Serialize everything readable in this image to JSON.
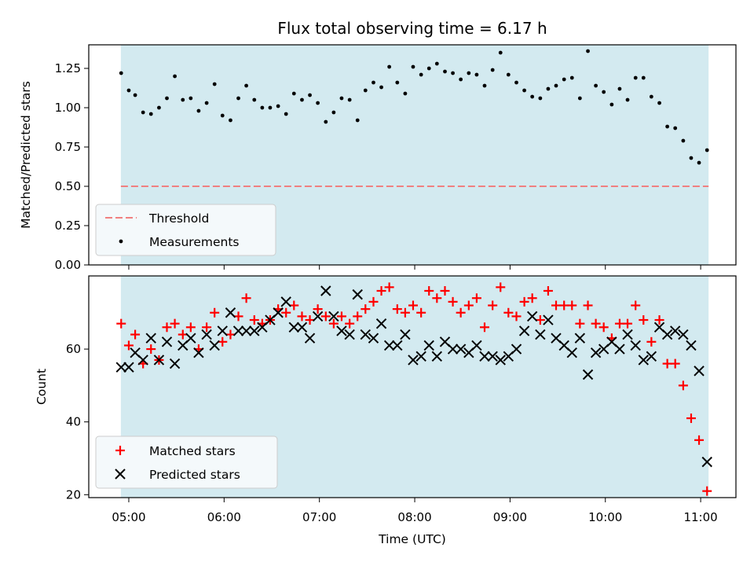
{
  "chart_data": [
    {
      "type": "scatter",
      "title": "Flux total observing time = 6.17 h",
      "ylabel": "Matched/Predicted stars",
      "xlabel": "",
      "xlim": [
        4.58,
        11.37
      ],
      "ylim": [
        0,
        1.4
      ],
      "yticks": [
        "0.00",
        "0.25",
        "0.50",
        "0.75",
        "1.00",
        "1.25"
      ],
      "grid": false,
      "legend_position": "lower-left",
      "shaded_span": [
        4.917,
        11.083
      ],
      "shade_color": "#d3eaf0",
      "threshold": {
        "name": "Threshold",
        "value": 0.5,
        "color": "#f08080"
      },
      "series": [
        {
          "name": "Measurements",
          "color": "#000000",
          "x": [
            4.92,
            5.0,
            5.067,
            5.15,
            5.233,
            5.317,
            5.4,
            5.483,
            5.567,
            5.65,
            5.733,
            5.817,
            5.9,
            5.983,
            6.067,
            6.15,
            6.233,
            6.317,
            6.4,
            6.483,
            6.567,
            6.65,
            6.733,
            6.817,
            6.9,
            6.983,
            7.067,
            7.15,
            7.233,
            7.317,
            7.4,
            7.483,
            7.567,
            7.65,
            7.733,
            7.817,
            7.9,
            7.983,
            8.067,
            8.15,
            8.233,
            8.317,
            8.4,
            8.483,
            8.567,
            8.65,
            8.733,
            8.817,
            8.9,
            8.983,
            9.067,
            9.15,
            9.233,
            9.317,
            9.4,
            9.483,
            9.567,
            9.65,
            9.733,
            9.817,
            9.9,
            9.983,
            10.067,
            10.15,
            10.233,
            10.317,
            10.4,
            10.483,
            10.567,
            10.65,
            10.733,
            10.817,
            10.9,
            10.983,
            11.067
          ],
          "y": [
            1.22,
            1.11,
            1.08,
            0.97,
            0.96,
            1.0,
            1.06,
            1.2,
            1.05,
            1.06,
            0.98,
            1.03,
            1.15,
            0.95,
            0.92,
            1.06,
            1.14,
            1.05,
            1.0,
            1.0,
            1.01,
            0.96,
            1.09,
            1.05,
            1.08,
            1.03,
            0.91,
            0.97,
            1.06,
            1.05,
            0.92,
            1.11,
            1.16,
            1.13,
            1.26,
            1.16,
            1.09,
            1.26,
            1.21,
            1.25,
            1.28,
            1.23,
            1.22,
            1.18,
            1.22,
            1.21,
            1.14,
            1.24,
            1.35,
            1.21,
            1.16,
            1.11,
            1.07,
            1.06,
            1.12,
            1.14,
            1.18,
            1.19,
            1.06,
            1.36,
            1.14,
            1.1,
            1.02,
            1.12,
            1.05,
            1.19,
            1.19,
            1.07,
            1.03,
            0.88,
            0.87,
            0.79,
            0.68,
            0.65,
            0.73
          ]
        }
      ]
    },
    {
      "type": "scatter",
      "title": "",
      "xlabel": "Time (UTC)",
      "ylabel": "Count",
      "xlim": [
        4.58,
        11.37
      ],
      "ylim": [
        19.2,
        80.1
      ],
      "xticks": [
        "05:00",
        "06:00",
        "07:00",
        "08:00",
        "09:00",
        "10:00",
        "11:00"
      ],
      "yticks": [
        "20",
        "40",
        "60"
      ],
      "grid": false,
      "legend_position": "lower-left",
      "shaded_span": [
        4.917,
        11.083
      ],
      "shade_color": "#d3eaf0",
      "series": [
        {
          "name": "Matched stars",
          "marker": "plus",
          "color": "#ff0000",
          "x": [
            4.92,
            5.0,
            5.067,
            5.15,
            5.233,
            5.317,
            5.4,
            5.483,
            5.567,
            5.65,
            5.733,
            5.817,
            5.9,
            5.983,
            6.067,
            6.15,
            6.233,
            6.317,
            6.4,
            6.483,
            6.567,
            6.65,
            6.733,
            6.817,
            6.9,
            6.983,
            7.067,
            7.15,
            7.233,
            7.317,
            7.4,
            7.483,
            7.567,
            7.65,
            7.733,
            7.817,
            7.9,
            7.983,
            8.067,
            8.15,
            8.233,
            8.317,
            8.4,
            8.483,
            8.567,
            8.65,
            8.733,
            8.817,
            8.9,
            8.983,
            9.067,
            9.15,
            9.233,
            9.317,
            9.4,
            9.483,
            9.567,
            9.65,
            9.733,
            9.817,
            9.9,
            9.983,
            10.067,
            10.15,
            10.233,
            10.317,
            10.4,
            10.483,
            10.567,
            10.65,
            10.733,
            10.817,
            10.9,
            10.983,
            11.067
          ],
          "y": [
            67,
            61,
            64,
            56,
            60,
            57,
            66,
            67,
            64,
            66,
            60,
            66,
            70,
            62,
            64,
            69,
            74,
            68,
            67,
            68,
            71,
            70,
            72,
            69,
            68,
            71,
            69,
            67,
            69,
            67,
            69,
            71,
            73,
            76,
            77,
            71,
            70,
            72,
            70,
            76,
            74,
            76,
            73,
            70,
            72,
            74,
            66,
            72,
            77,
            70,
            69,
            73,
            74,
            68,
            76,
            72,
            72,
            72,
            67,
            72,
            67,
            66,
            63,
            67,
            67,
            72,
            68,
            62,
            68,
            56,
            56,
            50,
            41,
            35,
            21
          ]
        },
        {
          "name": "Predicted stars",
          "marker": "x",
          "color": "#000000",
          "x": [
            4.92,
            5.0,
            5.067,
            5.15,
            5.233,
            5.317,
            5.4,
            5.483,
            5.567,
            5.65,
            5.733,
            5.817,
            5.9,
            5.983,
            6.067,
            6.15,
            6.233,
            6.317,
            6.4,
            6.483,
            6.567,
            6.65,
            6.733,
            6.817,
            6.9,
            6.983,
            7.067,
            7.15,
            7.233,
            7.317,
            7.4,
            7.483,
            7.567,
            7.65,
            7.733,
            7.817,
            7.9,
            7.983,
            8.067,
            8.15,
            8.233,
            8.317,
            8.4,
            8.483,
            8.567,
            8.65,
            8.733,
            8.817,
            8.9,
            8.983,
            9.067,
            9.15,
            9.233,
            9.317,
            9.4,
            9.483,
            9.567,
            9.65,
            9.733,
            9.817,
            9.9,
            9.983,
            10.067,
            10.15,
            10.233,
            10.317,
            10.4,
            10.483,
            10.567,
            10.65,
            10.733,
            10.817,
            10.9,
            10.983,
            11.067
          ],
          "y": [
            55,
            55,
            59,
            57,
            63,
            57,
            62,
            56,
            61,
            63,
            59,
            64,
            61,
            65,
            70,
            65,
            65,
            65,
            66,
            68,
            70,
            73,
            66,
            66,
            63,
            69,
            76,
            69,
            65,
            64,
            75,
            64,
            63,
            67,
            61,
            61,
            64,
            57,
            58,
            61,
            58,
            62,
            60,
            60,
            59,
            61,
            58,
            58,
            57,
            58,
            60,
            65,
            69,
            64,
            68,
            63,
            61,
            59,
            63,
            53,
            59,
            60,
            62,
            60,
            64,
            61,
            57,
            58,
            66,
            64,
            65,
            64,
            61,
            54,
            29
          ]
        }
      ]
    }
  ]
}
